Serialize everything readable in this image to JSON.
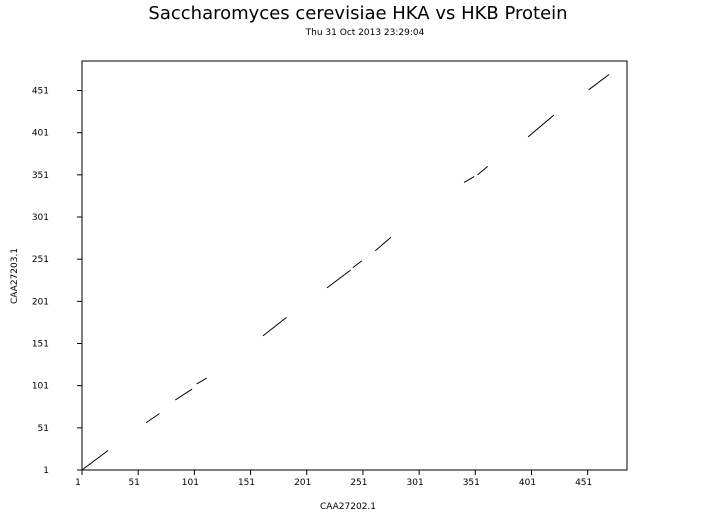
{
  "chart_data": {
    "type": "scatter",
    "style": "dot plot (line segments of matching regions)",
    "title": "Saccharomyces cerevisiae HKA vs HKB Protein",
    "subtitle": "Thu 31 Oct 2013 23:29:04",
    "xlabel": "CAA27202.1",
    "ylabel": "CAA27203.1",
    "xlim": [
      1,
      486
    ],
    "ylim": [
      1,
      486
    ],
    "xticks": [
      "1",
      "51",
      "101",
      "151",
      "201",
      "251",
      "301",
      "351",
      "401",
      "451"
    ],
    "yticks": [
      "1",
      "51",
      "101",
      "151",
      "201",
      "251",
      "301",
      "351",
      "401",
      "451"
    ],
    "tick_values": [
      1,
      51,
      101,
      151,
      201,
      251,
      301,
      351,
      401,
      451
    ],
    "segments": [
      {
        "x1": 1,
        "y1": 1,
        "x2": 24,
        "y2": 24
      },
      {
        "x1": 58,
        "y1": 57,
        "x2": 70,
        "y2": 68
      },
      {
        "x1": 84,
        "y1": 84,
        "x2": 99,
        "y2": 97
      },
      {
        "x1": 103,
        "y1": 103,
        "x2": 112,
        "y2": 110
      },
      {
        "x1": 162,
        "y1": 160,
        "x2": 183,
        "y2": 182
      },
      {
        "x1": 219,
        "y1": 217,
        "x2": 240,
        "y2": 238
      },
      {
        "x1": 242,
        "y1": 241,
        "x2": 250,
        "y2": 249
      },
      {
        "x1": 262,
        "y1": 261,
        "x2": 276,
        "y2": 277
      },
      {
        "x1": 341,
        "y1": 342,
        "x2": 350,
        "y2": 349
      },
      {
        "x1": 353,
        "y1": 351,
        "x2": 362,
        "y2": 361
      },
      {
        "x1": 398,
        "y1": 396,
        "x2": 421,
        "y2": 422
      },
      {
        "x1": 452,
        "y1": 452,
        "x2": 470,
        "y2": 470
      }
    ]
  }
}
